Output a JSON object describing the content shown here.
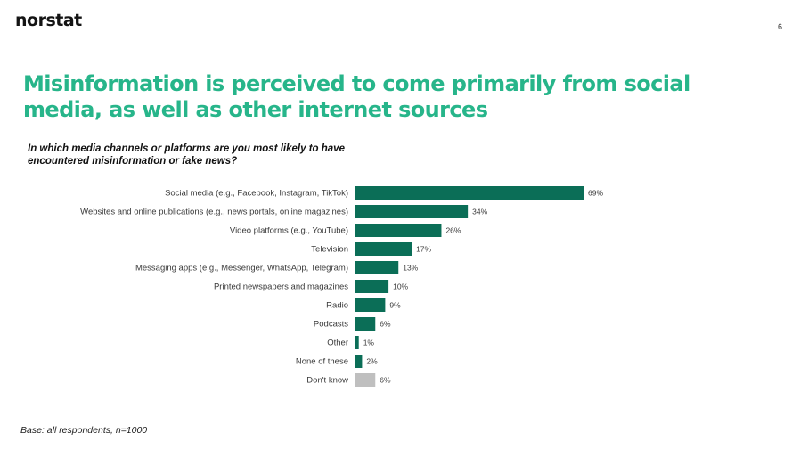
{
  "header": {
    "logo_text": "norstat",
    "page_number": "6"
  },
  "title": "Misinformation is perceived to come primarily from social media, as well as other internet sources",
  "question": "In which media channels or platforms are you most likely to have encountered misinformation or fake news?",
  "footnote": "Base: all respondents, n=1000",
  "colors": {
    "bar": "#0b6e57",
    "bar_dont_know": "#bfbfbf",
    "title": "#27b58a"
  },
  "chart_data": {
    "type": "bar",
    "orientation": "horizontal",
    "categories": [
      "Social media (e.g., Facebook, Instagram, TikTok)",
      "Websites and online publications (e.g., news portals, online magazines)",
      "Video platforms (e.g., YouTube)",
      "Television",
      "Messaging apps (e.g., Messenger, WhatsApp, Telegram)",
      "Printed newspapers and magazines",
      "Radio",
      "Podcasts",
      "Other",
      "None of these",
      "Don't know"
    ],
    "values": [
      69,
      34,
      26,
      17,
      13,
      10,
      9,
      6,
      1,
      2,
      6
    ],
    "value_labels": [
      "69%",
      "34%",
      "26%",
      "17%",
      "13%",
      "10%",
      "9%",
      "6%",
      "1%",
      "2%",
      "6%"
    ],
    "unit": "%",
    "title": "",
    "xlabel": "",
    "ylabel": "",
    "xlim": [
      0,
      69
    ],
    "grid": false,
    "legend": "none",
    "highlight_grey": [
      "Don't know"
    ]
  }
}
